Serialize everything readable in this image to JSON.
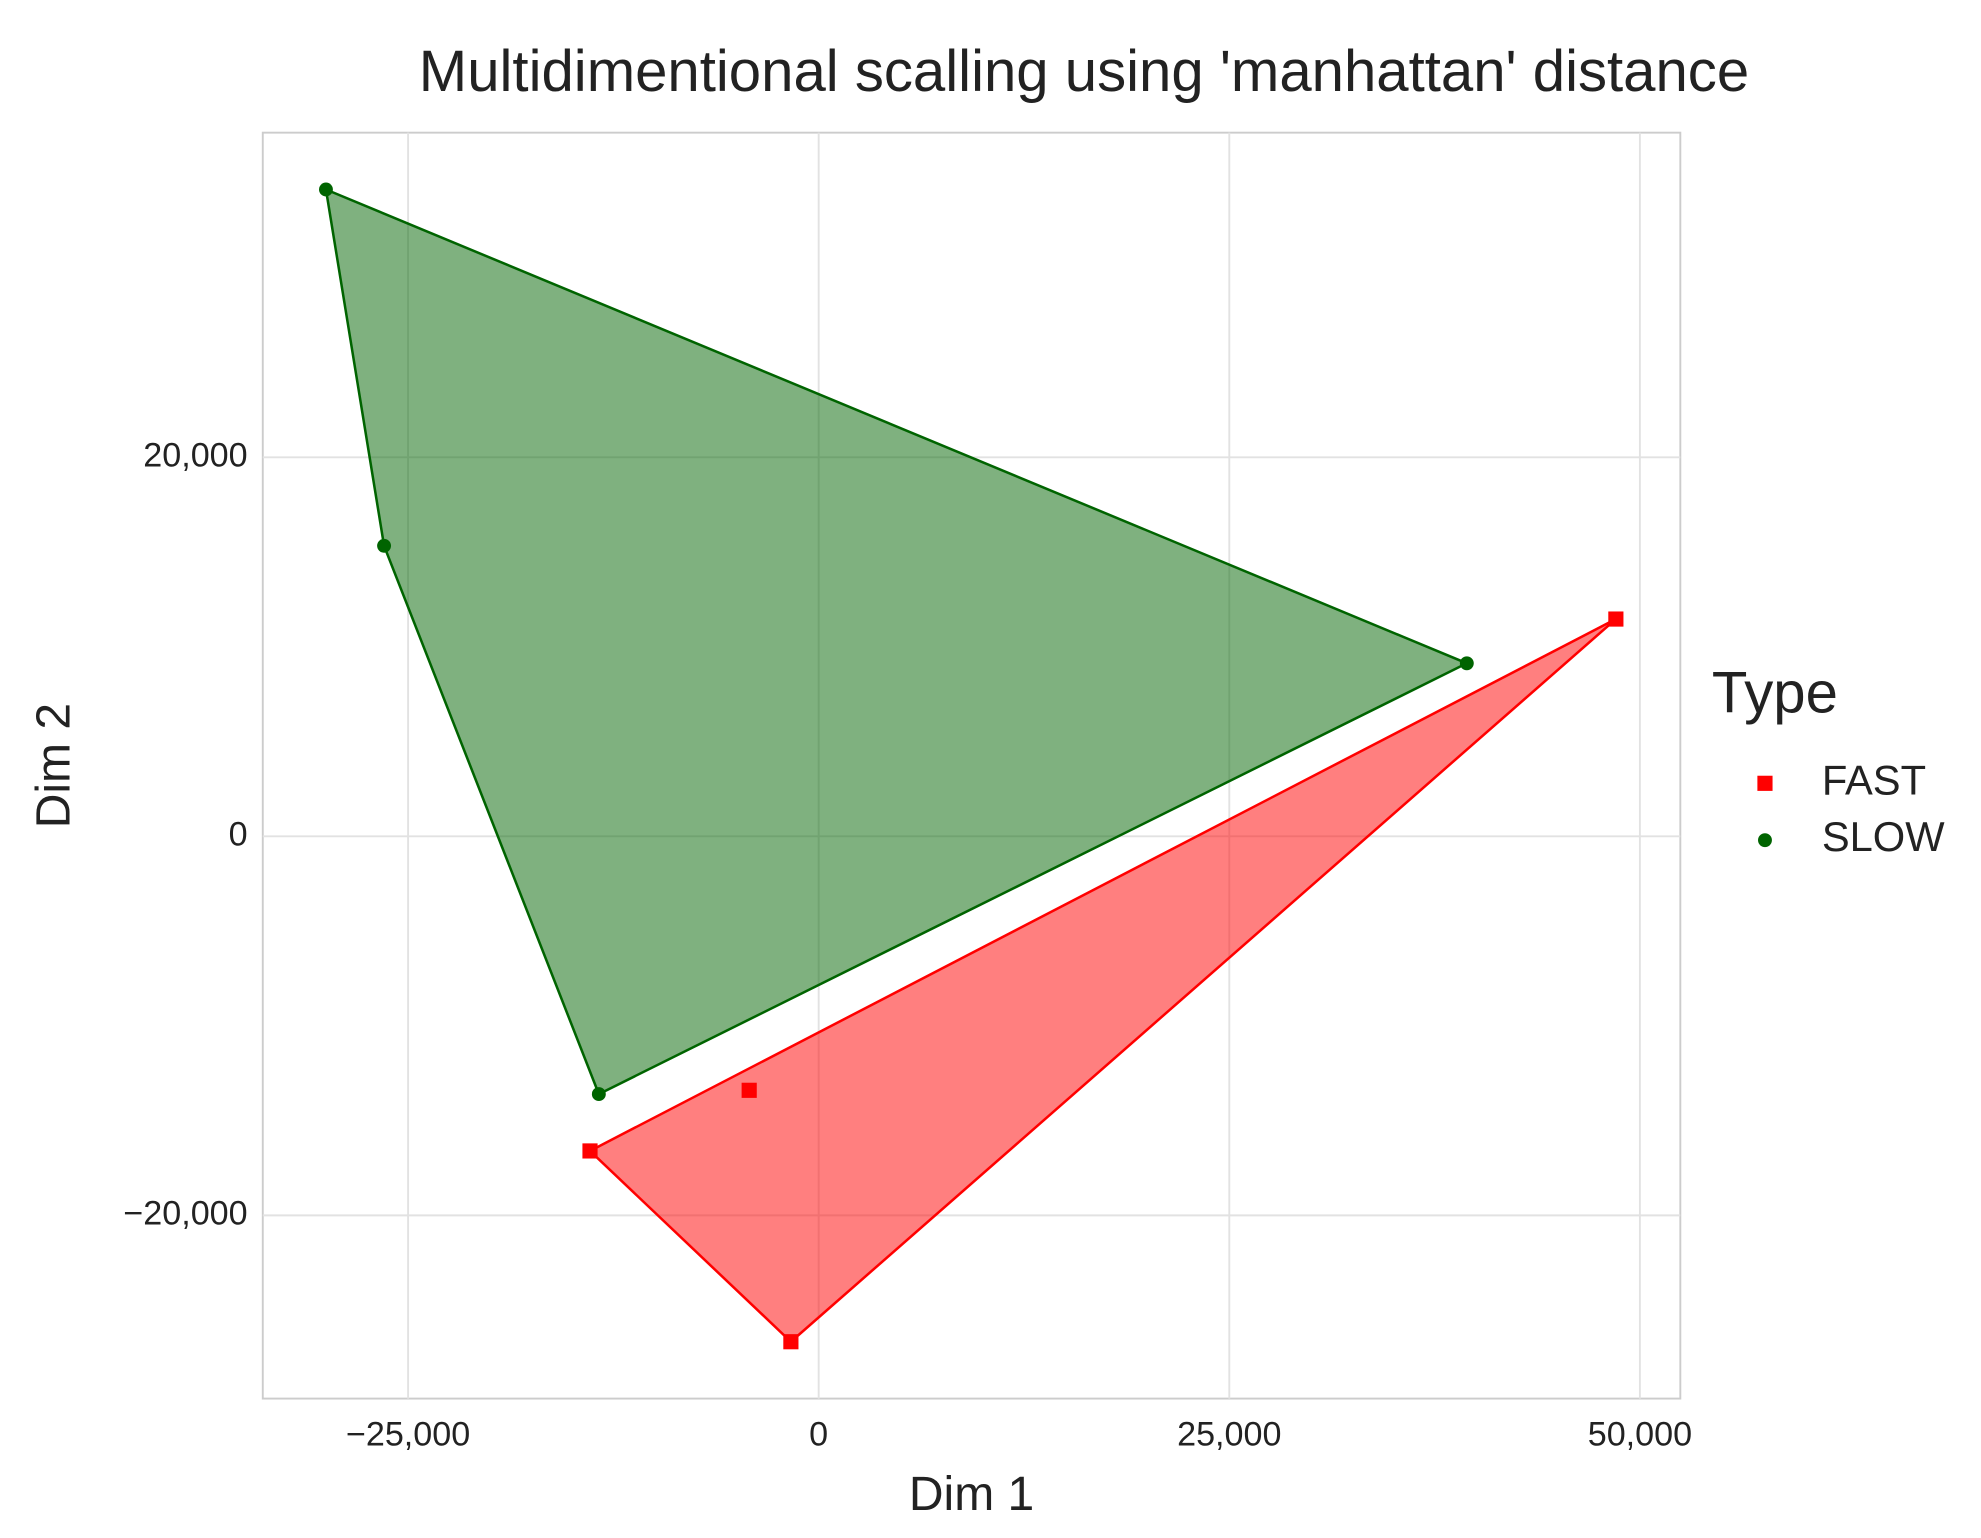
{
  "chart_data": {
    "type": "scatter",
    "title": "Multidimentional scalling using 'manhattan' distance",
    "x_label": "Dim  1",
    "y_label": "Dim  2",
    "legend_title": "Type",
    "legend_position": "right",
    "grid": true,
    "xlim": [
      -33846,
      52462
    ],
    "ylim": [
      -29667,
      37133
    ],
    "xticks": [
      {
        "value": -25000,
        "label": "−25,000"
      },
      0,
      {
        "value": 25000,
        "label": "25,000"
      },
      {
        "value": 50000,
        "label": "50,000"
      }
    ],
    "yticks": [
      {
        "value": -20000,
        "label": "−20,000"
      },
      0,
      {
        "value": 20000,
        "label": "20,000"
      }
    ],
    "series": [
      {
        "name": "FAST",
        "color": "#ff0000",
        "marker": "square",
        "x": [
          48538,
          -13923,
          -4231,
          -1692
        ],
        "values": [
          11467,
          -16600,
          -13400,
          -26667
        ]
      },
      {
        "name": "SLOW",
        "color": "#006400",
        "marker": "circle",
        "x": [
          -30000,
          -26462,
          -13385,
          39462
        ],
        "values": [
          34133,
          15333,
          -13600,
          9133
        ]
      }
    ]
  }
}
